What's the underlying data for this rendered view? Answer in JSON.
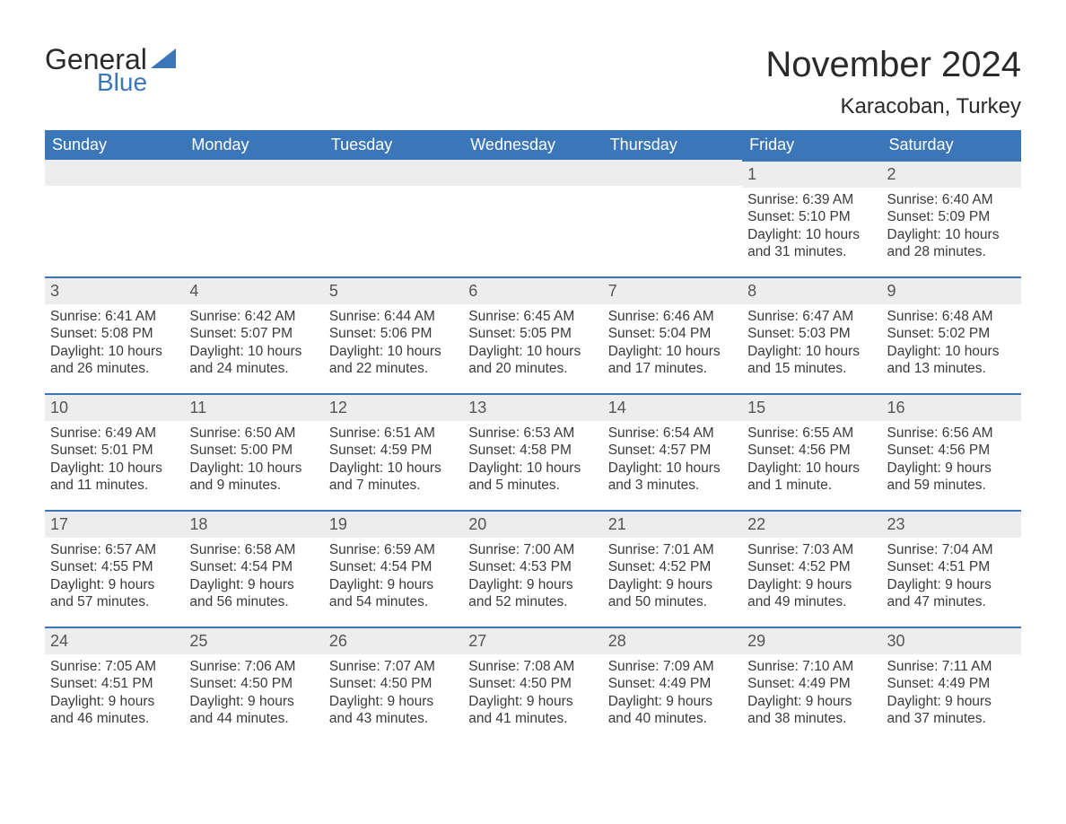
{
  "brand": {
    "word1": "General",
    "word2": "Blue",
    "text_color": "#2a2a2a",
    "accent_color": "#3b77b8"
  },
  "title": "November 2024",
  "location": "Karacoban, Turkey",
  "colors": {
    "header_bg": "#3b77b8",
    "header_text": "#ffffff",
    "row_divider": "#3b77b8",
    "daynum_bg": "#ededed",
    "daynum_text": "#555555",
    "body_text": "#3a3a3a",
    "page_bg": "#ffffff"
  },
  "day_headers": [
    "Sunday",
    "Monday",
    "Tuesday",
    "Wednesday",
    "Thursday",
    "Friday",
    "Saturday"
  ],
  "weeks": [
    [
      null,
      null,
      null,
      null,
      null,
      {
        "n": "1",
        "sunrise": "6:39 AM",
        "sunset": "5:10 PM",
        "daylight": "10 hours and 31 minutes."
      },
      {
        "n": "2",
        "sunrise": "6:40 AM",
        "sunset": "5:09 PM",
        "daylight": "10 hours and 28 minutes."
      }
    ],
    [
      {
        "n": "3",
        "sunrise": "6:41 AM",
        "sunset": "5:08 PM",
        "daylight": "10 hours and 26 minutes."
      },
      {
        "n": "4",
        "sunrise": "6:42 AM",
        "sunset": "5:07 PM",
        "daylight": "10 hours and 24 minutes."
      },
      {
        "n": "5",
        "sunrise": "6:44 AM",
        "sunset": "5:06 PM",
        "daylight": "10 hours and 22 minutes."
      },
      {
        "n": "6",
        "sunrise": "6:45 AM",
        "sunset": "5:05 PM",
        "daylight": "10 hours and 20 minutes."
      },
      {
        "n": "7",
        "sunrise": "6:46 AM",
        "sunset": "5:04 PM",
        "daylight": "10 hours and 17 minutes."
      },
      {
        "n": "8",
        "sunrise": "6:47 AM",
        "sunset": "5:03 PM",
        "daylight": "10 hours and 15 minutes."
      },
      {
        "n": "9",
        "sunrise": "6:48 AM",
        "sunset": "5:02 PM",
        "daylight": "10 hours and 13 minutes."
      }
    ],
    [
      {
        "n": "10",
        "sunrise": "6:49 AM",
        "sunset": "5:01 PM",
        "daylight": "10 hours and 11 minutes."
      },
      {
        "n": "11",
        "sunrise": "6:50 AM",
        "sunset": "5:00 PM",
        "daylight": "10 hours and 9 minutes."
      },
      {
        "n": "12",
        "sunrise": "6:51 AM",
        "sunset": "4:59 PM",
        "daylight": "10 hours and 7 minutes."
      },
      {
        "n": "13",
        "sunrise": "6:53 AM",
        "sunset": "4:58 PM",
        "daylight": "10 hours and 5 minutes."
      },
      {
        "n": "14",
        "sunrise": "6:54 AM",
        "sunset": "4:57 PM",
        "daylight": "10 hours and 3 minutes."
      },
      {
        "n": "15",
        "sunrise": "6:55 AM",
        "sunset": "4:56 PM",
        "daylight": "10 hours and 1 minute."
      },
      {
        "n": "16",
        "sunrise": "6:56 AM",
        "sunset": "4:56 PM",
        "daylight": "9 hours and 59 minutes."
      }
    ],
    [
      {
        "n": "17",
        "sunrise": "6:57 AM",
        "sunset": "4:55 PM",
        "daylight": "9 hours and 57 minutes."
      },
      {
        "n": "18",
        "sunrise": "6:58 AM",
        "sunset": "4:54 PM",
        "daylight": "9 hours and 56 minutes."
      },
      {
        "n": "19",
        "sunrise": "6:59 AM",
        "sunset": "4:54 PM",
        "daylight": "9 hours and 54 minutes."
      },
      {
        "n": "20",
        "sunrise": "7:00 AM",
        "sunset": "4:53 PM",
        "daylight": "9 hours and 52 minutes."
      },
      {
        "n": "21",
        "sunrise": "7:01 AM",
        "sunset": "4:52 PM",
        "daylight": "9 hours and 50 minutes."
      },
      {
        "n": "22",
        "sunrise": "7:03 AM",
        "sunset": "4:52 PM",
        "daylight": "9 hours and 49 minutes."
      },
      {
        "n": "23",
        "sunrise": "7:04 AM",
        "sunset": "4:51 PM",
        "daylight": "9 hours and 47 minutes."
      }
    ],
    [
      {
        "n": "24",
        "sunrise": "7:05 AM",
        "sunset": "4:51 PM",
        "daylight": "9 hours and 46 minutes."
      },
      {
        "n": "25",
        "sunrise": "7:06 AM",
        "sunset": "4:50 PM",
        "daylight": "9 hours and 44 minutes."
      },
      {
        "n": "26",
        "sunrise": "7:07 AM",
        "sunset": "4:50 PM",
        "daylight": "9 hours and 43 minutes."
      },
      {
        "n": "27",
        "sunrise": "7:08 AM",
        "sunset": "4:50 PM",
        "daylight": "9 hours and 41 minutes."
      },
      {
        "n": "28",
        "sunrise": "7:09 AM",
        "sunset": "4:49 PM",
        "daylight": "9 hours and 40 minutes."
      },
      {
        "n": "29",
        "sunrise": "7:10 AM",
        "sunset": "4:49 PM",
        "daylight": "9 hours and 38 minutes."
      },
      {
        "n": "30",
        "sunrise": "7:11 AM",
        "sunset": "4:49 PM",
        "daylight": "9 hours and 37 minutes."
      }
    ]
  ],
  "labels": {
    "sunrise_prefix": "Sunrise: ",
    "sunset_prefix": "Sunset: ",
    "daylight_prefix": "Daylight: "
  }
}
